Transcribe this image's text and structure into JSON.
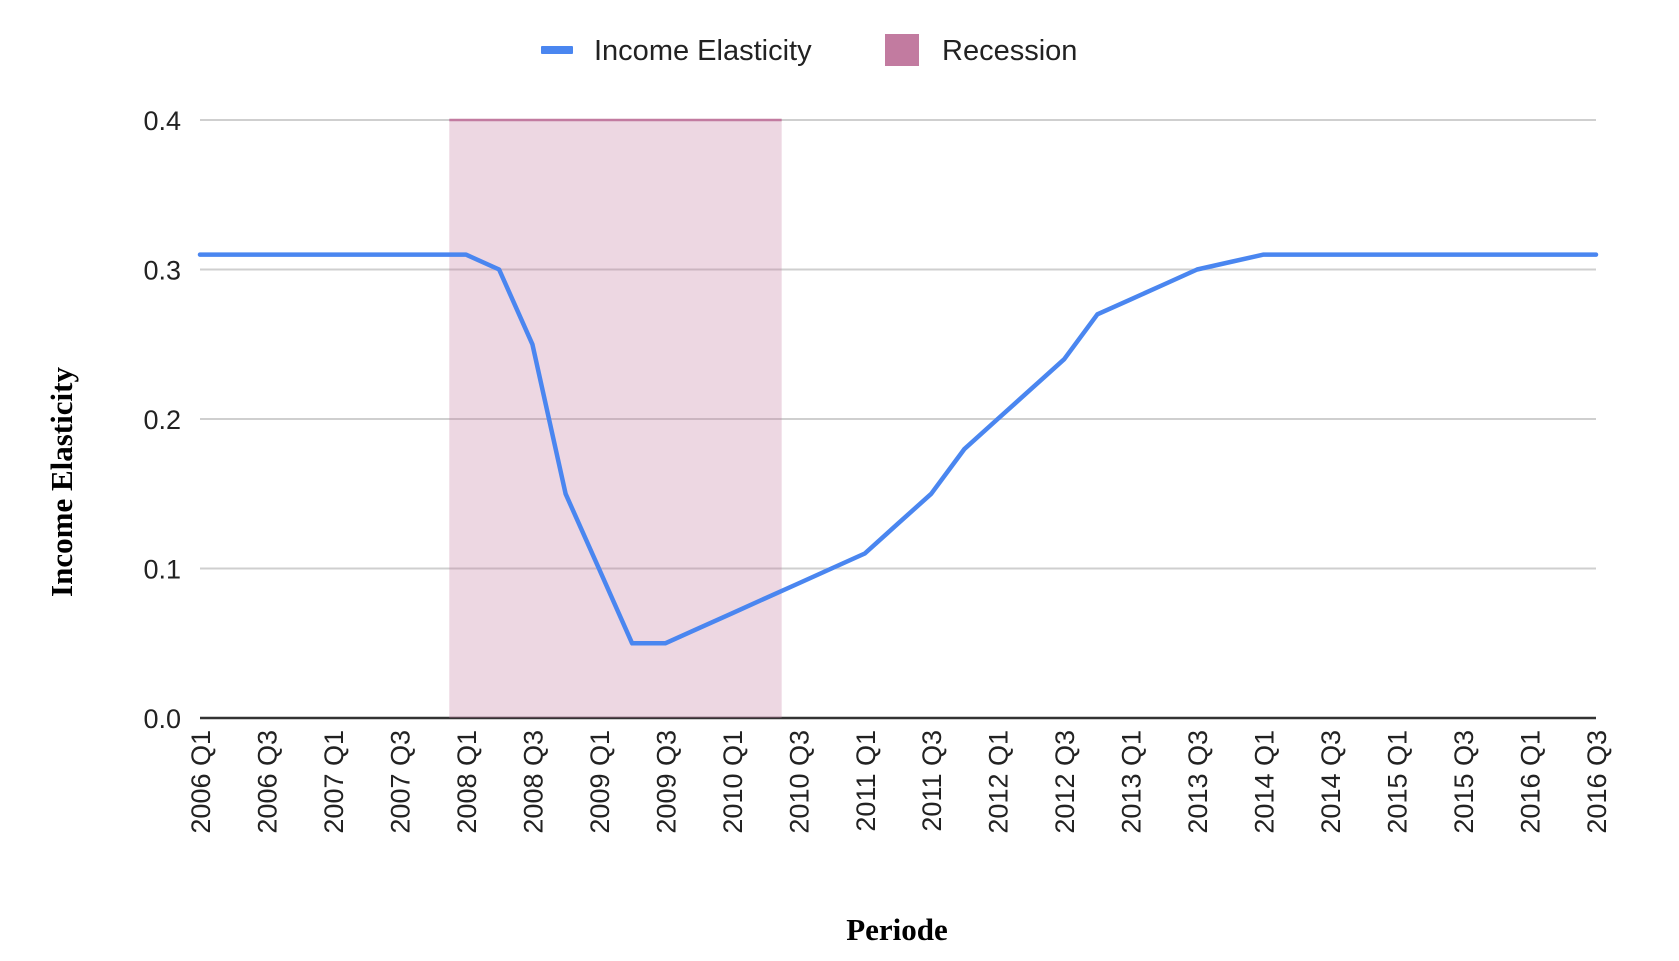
{
  "chart_data": {
    "type": "line",
    "title": "",
    "xlabel": "Periode",
    "ylabel": "Income Elasticity",
    "ylim": [
      0,
      0.4
    ],
    "y_ticks": [
      "0.0",
      "0.1",
      "0.2",
      "0.3",
      "0.4"
    ],
    "grid": true,
    "legend_position": "top",
    "categories": [
      "2006 Q1",
      "2006 Q2",
      "2006 Q3",
      "2006 Q4",
      "2007 Q1",
      "2007 Q2",
      "2007 Q3",
      "2007 Q4",
      "2008 Q1",
      "2008 Q2",
      "2008 Q3",
      "2008 Q4",
      "2009 Q1",
      "2009 Q2",
      "2009 Q3",
      "2009 Q4",
      "2010 Q1",
      "2010 Q2",
      "2010 Q3",
      "2010 Q4",
      "2011 Q1",
      "2011 Q2",
      "2011 Q3",
      "2011 Q4",
      "2012 Q1",
      "2012 Q2",
      "2012 Q3",
      "2012 Q4",
      "2013 Q1",
      "2013 Q2",
      "2013 Q3",
      "2013 Q4",
      "2014 Q1",
      "2014 Q2",
      "2014 Q3",
      "2014 Q4",
      "2015 Q1",
      "2015 Q2",
      "2015 Q3",
      "2015 Q4",
      "2016 Q1",
      "2016 Q2",
      "2016 Q3"
    ],
    "x_tick_labels": [
      "2006 Q1",
      "2006 Q3",
      "2007 Q1",
      "2007 Q3",
      "2008 Q1",
      "2008 Q3",
      "2009 Q1",
      "2009 Q3",
      "2010 Q1",
      "2010 Q3",
      "2011 Q1",
      "2011 Q3",
      "2012 Q1",
      "2012 Q3",
      "2013 Q1",
      "2013 Q3",
      "2014 Q1",
      "2014 Q3",
      "2015 Q1",
      "2015 Q3",
      "2016 Q1",
      "2016 Q3"
    ],
    "series": [
      {
        "name": "Income Elasticity",
        "color": "#4a86f0",
        "values": [
          0.31,
          0.31,
          0.31,
          0.31,
          0.31,
          0.31,
          0.31,
          0.31,
          0.31,
          0.3,
          0.25,
          0.15,
          0.1,
          0.05,
          0.05,
          0.06,
          0.07,
          0.08,
          0.09,
          0.1,
          0.11,
          0.13,
          0.15,
          0.18,
          0.2,
          0.22,
          0.24,
          0.27,
          0.28,
          0.29,
          0.3,
          0.305,
          0.31,
          0.31,
          0.31,
          0.31,
          0.31,
          0.31,
          0.31,
          0.31,
          0.31,
          0.31,
          0.31
        ]
      }
    ],
    "shaded_region": {
      "name": "Recession",
      "color": "#c27ba0",
      "start": "2007 Q4",
      "end": "2010 Q2",
      "value": 0.4
    }
  }
}
